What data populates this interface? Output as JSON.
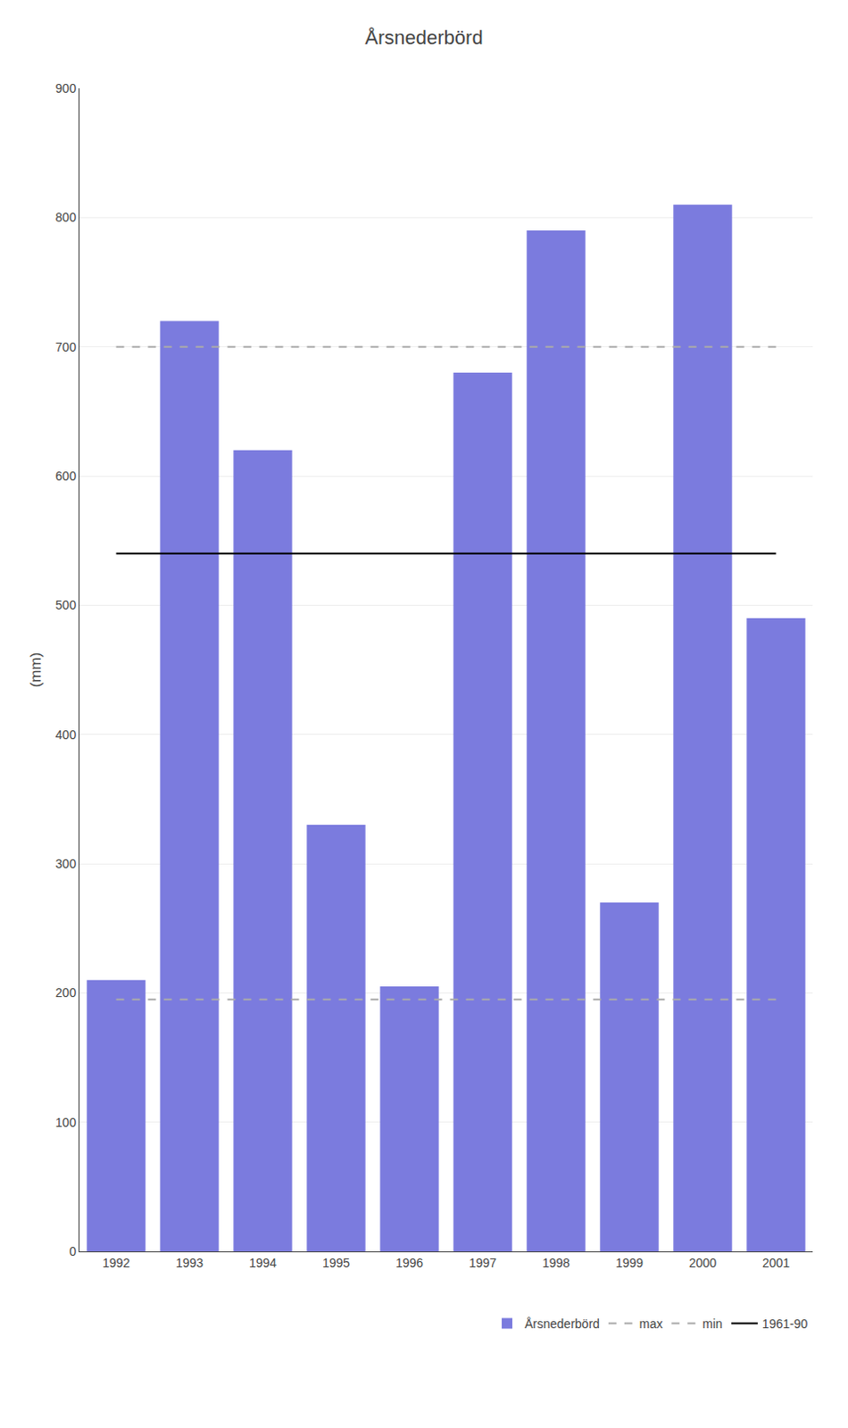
{
  "chart_data": {
    "type": "bar",
    "title": "Årsnederbörd",
    "ylabel": "(mm)",
    "categories": [
      "1992",
      "1993",
      "1994",
      "1995",
      "1996",
      "1997",
      "1998",
      "1999",
      "2000",
      "2001"
    ],
    "series": [
      {
        "name": "Årsnederbörd",
        "type": "bar",
        "color": "#7b7bde",
        "values": [
          210,
          720,
          620,
          330,
          205,
          680,
          790,
          270,
          810,
          490
        ]
      },
      {
        "name": "max",
        "type": "line",
        "color": "#aaaaaa",
        "line_style": "dashed",
        "values": [
          700,
          700,
          700,
          700,
          700,
          700,
          700,
          700,
          700,
          700
        ]
      },
      {
        "name": "min",
        "type": "line",
        "color": "#aaaaaa",
        "line_style": "dashed",
        "values": [
          195,
          195,
          195,
          195,
          195,
          195,
          195,
          195,
          195,
          195
        ]
      },
      {
        "name": "1961-90",
        "type": "line",
        "color": "#000000",
        "line_style": "solid",
        "values": [
          540,
          540,
          540,
          540,
          540,
          540,
          540,
          540,
          540,
          540
        ]
      }
    ],
    "ylim": [
      0,
      900
    ],
    "yticks": [
      0,
      100,
      200,
      300,
      400,
      500,
      600,
      700,
      800,
      900
    ],
    "grid": true,
    "legend": "lower right"
  }
}
